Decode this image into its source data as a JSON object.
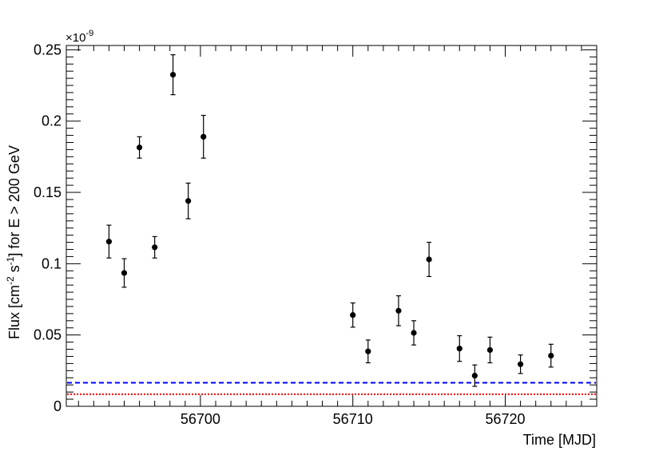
{
  "chart_data": {
    "type": "scatter",
    "title": "",
    "xlabel": "Time [MJD]",
    "ylabel_parts": {
      "a": "Flux [cm",
      "b": "-2",
      "c": " s",
      "d": "-1",
      "e": "] for E > 200 GeV"
    },
    "y_multiplier": "×10",
    "y_multiplier_exp": "-9",
    "xlim": [
      56691.2,
      56726
    ],
    "ylim": [
      0,
      0.253
    ],
    "x_ticks": [
      56700,
      56710,
      56720
    ],
    "x_tick_labels": [
      "56700",
      "56710",
      "56720"
    ],
    "y_ticks": [
      0,
      0.05,
      0.1,
      0.15,
      0.2,
      0.25
    ],
    "y_tick_labels": [
      "0",
      "0.05",
      "0.1",
      "0.15",
      "0.2",
      "0.25"
    ],
    "grid": false,
    "series": [
      {
        "marker": "circle",
        "color": "#000000",
        "points": [
          {
            "x": 56694,
            "y": 0.1155,
            "err": 0.0115
          },
          {
            "x": 56695,
            "y": 0.0935,
            "err": 0.01
          },
          {
            "x": 56696,
            "y": 0.1815,
            "err": 0.0075
          },
          {
            "x": 56697,
            "y": 0.1115,
            "err": 0.0075
          },
          {
            "x": 56698.2,
            "y": 0.2325,
            "err": 0.014
          },
          {
            "x": 56699.2,
            "y": 0.144,
            "err": 0.0125
          },
          {
            "x": 56700.2,
            "y": 0.189,
            "err": 0.015
          },
          {
            "x": 56710,
            "y": 0.064,
            "err": 0.0085
          },
          {
            "x": 56711,
            "y": 0.0385,
            "err": 0.008
          },
          {
            "x": 56713,
            "y": 0.067,
            "err": 0.0105
          },
          {
            "x": 56714,
            "y": 0.0515,
            "err": 0.0085
          },
          {
            "x": 56715,
            "y": 0.103,
            "err": 0.012
          },
          {
            "x": 56717,
            "y": 0.0405,
            "err": 0.009
          },
          {
            "x": 56718,
            "y": 0.0215,
            "err": 0.0075
          },
          {
            "x": 56719,
            "y": 0.0395,
            "err": 0.009
          },
          {
            "x": 56721,
            "y": 0.0295,
            "err": 0.0065
          },
          {
            "x": 56723,
            "y": 0.0355,
            "err": 0.008
          }
        ]
      }
    ],
    "reference_lines": [
      {
        "y": 0.0165,
        "color": "#0000ff",
        "style": "dashed"
      },
      {
        "y": 0.0085,
        "color": "#ff0000",
        "style": "dotted"
      }
    ]
  }
}
